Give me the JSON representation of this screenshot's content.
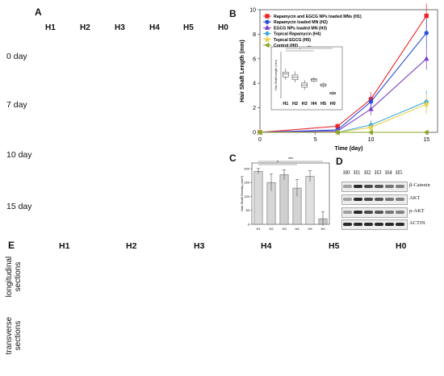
{
  "panels": {
    "A": "A",
    "B": "B",
    "C": "C",
    "D": "D",
    "E": "E"
  },
  "panelA": {
    "columns": [
      "H1",
      "H2",
      "H3",
      "H4",
      "H5",
      "H0"
    ],
    "rows": [
      "0 day",
      "7 day",
      "10 day",
      "15 day"
    ]
  },
  "chart_data": [
    {
      "type": "line",
      "panel": "B",
      "xlabel": "Time (day)",
      "ylabel": "Hair Shaft Length (mm)",
      "xlim": [
        0,
        16
      ],
      "ylim": [
        0,
        10
      ],
      "xticks": [
        0,
        5,
        10,
        15
      ],
      "yticks": [
        0,
        2,
        4,
        6,
        8,
        10
      ],
      "x": [
        0,
        7,
        10,
        15
      ],
      "legend_position": "top-left",
      "series": [
        {
          "name": "Rapamycin and EGCG NPs loaded MNs (H1)",
          "color": "#e8272a",
          "marker": "square",
          "values": [
            0,
            0.5,
            2.7,
            9.5
          ]
        },
        {
          "name": "Rapamycin loaded MN (H2)",
          "color": "#2a4fd8",
          "marker": "circle",
          "values": [
            0,
            0.2,
            2.5,
            8.1
          ]
        },
        {
          "name": "EGCG NPs loaded MN (H3)",
          "color": "#7b3fc6",
          "marker": "triangle",
          "values": [
            0,
            0.1,
            1.9,
            6.0
          ]
        },
        {
          "name": "Topical Rapamycin (H4)",
          "color": "#35a8d6",
          "marker": "diamond",
          "values": [
            0,
            0,
            0.6,
            2.5
          ]
        },
        {
          "name": "Topical EGCG (H5)",
          "color": "#e8d24a",
          "marker": "star",
          "values": [
            0,
            0,
            0.4,
            2.3
          ]
        },
        {
          "name": "Control (H0)",
          "color": "#8aa52a",
          "marker": "tri-left",
          "values": [
            0,
            0,
            0,
            0
          ]
        }
      ],
      "inset": {
        "type": "box",
        "ylabel": "Hair Shaft Length (mm)",
        "categories": [
          "H1",
          "H2",
          "H3",
          "H4",
          "H5",
          "H0"
        ],
        "ylim": [
          0,
          10
        ],
        "boxes": [
          {
            "q1": 4.6,
            "median": 5.2,
            "q3": 5.6,
            "min": 4.0,
            "max": 6.4
          },
          {
            "q1": 4.0,
            "median": 4.5,
            "q3": 5.0,
            "min": 3.4,
            "max": 5.8
          },
          {
            "q1": 2.4,
            "median": 2.9,
            "q3": 3.3,
            "min": 1.8,
            "max": 3.9
          },
          {
            "q1": 3.7,
            "median": 4.0,
            "q3": 4.2,
            "min": 3.4,
            "max": 4.5
          },
          {
            "q1": 2.6,
            "median": 2.9,
            "q3": 3.1,
            "min": 2.3,
            "max": 3.4
          },
          {
            "q1": 0.9,
            "median": 1.1,
            "q3": 1.3,
            "min": 0.7,
            "max": 1.5
          }
        ],
        "significance": [
          "*",
          "***"
        ]
      }
    },
    {
      "type": "bar",
      "panel": "C",
      "ylabel": "Hair Shaft Density (mm²)",
      "categories": [
        "H1",
        "H2",
        "H3",
        "H4",
        "H5",
        "H0"
      ],
      "values": [
        190,
        150,
        178,
        130,
        172,
        20
      ],
      "errors": [
        10,
        30,
        18,
        30,
        20,
        25
      ],
      "ylim": [
        0,
        220
      ],
      "significance": [
        "*",
        "***"
      ]
    }
  ],
  "panelD": {
    "columns": [
      "H0",
      "H1",
      "H2",
      "H3",
      "H4",
      "H5"
    ],
    "proteins": [
      "β-Catenin",
      "AKT",
      "p-AKT",
      "ACTIN"
    ]
  },
  "panelE": {
    "columns": [
      "H1",
      "H2",
      "H3",
      "H4",
      "H5",
      "H0"
    ],
    "rows": [
      "longitudinal sections",
      "transverse sections"
    ]
  }
}
